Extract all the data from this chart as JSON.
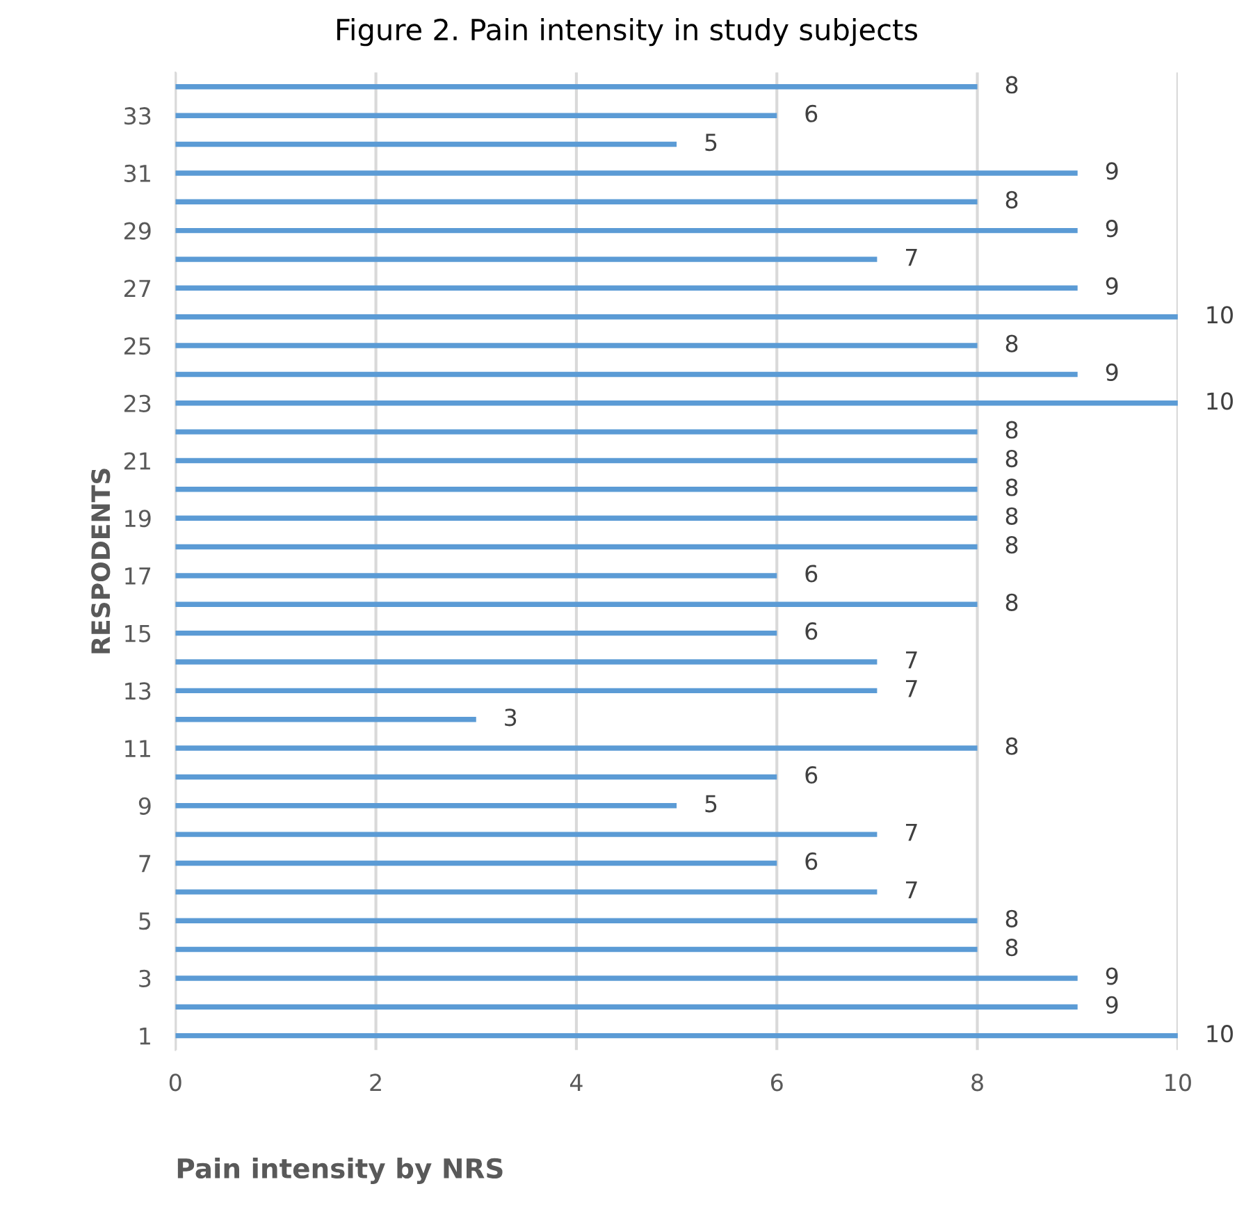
{
  "chart_data": {
    "type": "bar",
    "orientation": "horizontal",
    "title": "Figure 2. Pain intensity in study subjects",
    "xlabel": "Pain intensity by NRS",
    "ylabel": "RESPODENTS",
    "categories": [
      null,
      "33",
      null,
      "31",
      null,
      "29",
      null,
      "27",
      null,
      "25",
      null,
      "23",
      null,
      "21",
      null,
      "19",
      null,
      "17",
      null,
      "15",
      null,
      "13",
      null,
      "11",
      null,
      "9",
      null,
      "7",
      null,
      "5",
      null,
      "3",
      null,
      "1"
    ],
    "values": [
      8,
      6,
      5,
      9,
      8,
      9,
      7,
      9,
      10,
      8,
      9,
      10,
      8,
      8,
      8,
      8,
      8,
      6,
      8,
      6,
      7,
      7,
      3,
      8,
      6,
      5,
      7,
      6,
      7,
      8,
      8,
      9,
      9,
      10
    ],
    "color": "#5b9bd5",
    "xlim": [
      0,
      10
    ],
    "xticks": [
      0,
      2,
      4,
      6,
      8,
      10
    ],
    "grid": "x",
    "data_labels": true
  }
}
